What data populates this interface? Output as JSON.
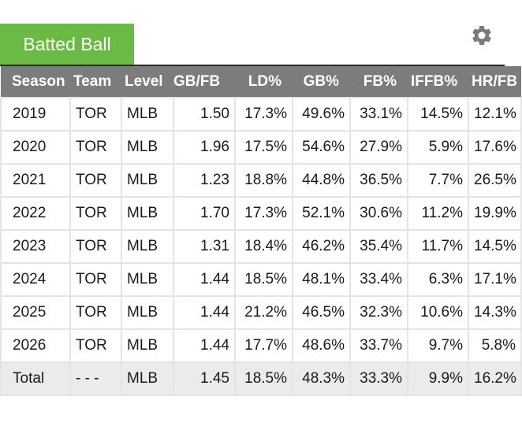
{
  "tab": {
    "label": "Batted Ball"
  },
  "settings": {
    "icon": "gear-icon"
  },
  "table": {
    "headers": [
      "Season",
      "Team",
      "Level",
      "GB/FB",
      "LD%",
      "GB%",
      "FB%",
      "IFFB%",
      "HR/FB"
    ],
    "rows": [
      [
        "2019",
        "TOR",
        "MLB",
        "1.50",
        "17.3%",
        "49.6%",
        "33.1%",
        "14.5%",
        "12.1%"
      ],
      [
        "2020",
        "TOR",
        "MLB",
        "1.96",
        "17.5%",
        "54.6%",
        "27.9%",
        "5.9%",
        "17.6%"
      ],
      [
        "2021",
        "TOR",
        "MLB",
        "1.23",
        "18.8%",
        "44.8%",
        "36.5%",
        "7.7%",
        "26.5%"
      ],
      [
        "2022",
        "TOR",
        "MLB",
        "1.70",
        "17.3%",
        "52.1%",
        "30.6%",
        "11.2%",
        "19.9%"
      ],
      [
        "2023",
        "TOR",
        "MLB",
        "1.31",
        "18.4%",
        "46.2%",
        "35.4%",
        "11.7%",
        "14.5%"
      ],
      [
        "2024",
        "TOR",
        "MLB",
        "1.44",
        "18.5%",
        "48.1%",
        "33.4%",
        "6.3%",
        "17.1%"
      ],
      [
        "2025",
        "TOR",
        "MLB",
        "1.44",
        "21.2%",
        "46.5%",
        "32.3%",
        "10.6%",
        "14.3%"
      ],
      [
        "2026",
        "TOR",
        "MLB",
        "1.44",
        "17.7%",
        "48.6%",
        "33.7%",
        "9.7%",
        "5.8%"
      ]
    ],
    "total": [
      "Total",
      "- - -",
      "MLB",
      "1.45",
      "18.5%",
      "48.3%",
      "33.3%",
      "9.9%",
      "16.2%"
    ]
  }
}
